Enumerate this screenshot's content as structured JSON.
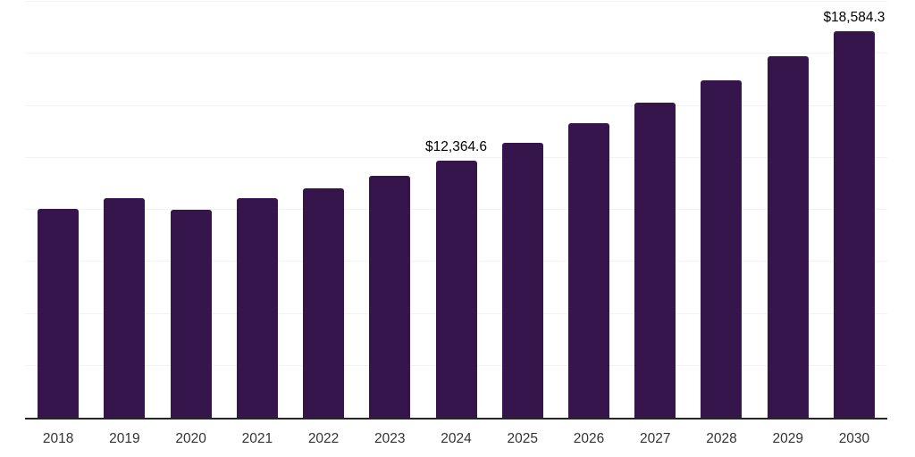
{
  "chart_data": {
    "type": "bar",
    "title": "",
    "xlabel": "",
    "ylabel": "",
    "categories": [
      "2018",
      "2019",
      "2020",
      "2021",
      "2022",
      "2023",
      "2024",
      "2025",
      "2026",
      "2027",
      "2028",
      "2029",
      "2030"
    ],
    "values": [
      10040,
      10540,
      10000,
      10580,
      11040,
      11620,
      12364.6,
      13233.5,
      14163.5,
      15158.7,
      16223.9,
      17364.0,
      18584.3
    ],
    "value_labels": {
      "2024": "$12,364.6",
      "2030": "$18,584.3"
    },
    "ylim": [
      0,
      20000
    ],
    "gridline_step": 2500,
    "grid": true,
    "legend_position": "none",
    "colors": {
      "bar": "#35154B",
      "axis": "#262626",
      "gridline": "#f2f2f2",
      "value_label": "#000000",
      "tick_label": "#333333",
      "background": "#ffffff"
    }
  }
}
